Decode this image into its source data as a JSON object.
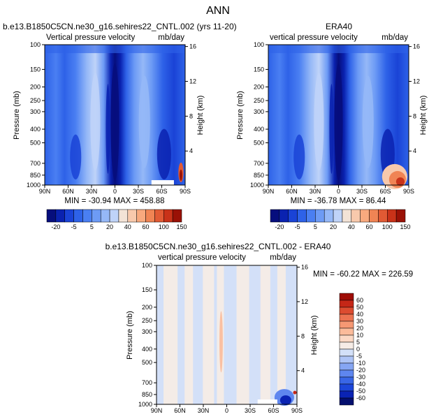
{
  "figure_title": "ANN",
  "colors": {
    "model_levels": [
      "#060e7d",
      "#0a22b0",
      "#1a43d6",
      "#2e62e8",
      "#4a7ff2",
      "#6d9bf5",
      "#95b8f7",
      "#bfd3f8",
      "#f3e3d6",
      "#f8c9ac",
      "#f8a97e",
      "#f08454",
      "#e15a34",
      "#c93219",
      "#9a1106"
    ],
    "diff_levels": [
      "#040f6e",
      "#0a23b4",
      "#1c46d9",
      "#3966e6",
      "#5e86ef",
      "#86a6f3",
      "#aec4f6",
      "#d3e0f8",
      "#f6ece6",
      "#fbd8c4",
      "#fbbb9a",
      "#f69873",
      "#ec7351",
      "#dc4c30",
      "#c52717",
      "#9e0c06"
    ]
  },
  "panels": [
    {
      "id": "model",
      "title": "b.e13.B1850C5CN.ne30_g16.sehires22_CNTL.002 (yrs 11-20)",
      "left_label": "Vertical pressure velocity",
      "right_label": "mb/day",
      "min_max": "MIN = -30.94   MAX = 458.88"
    },
    {
      "id": "obs",
      "title": "ERA40",
      "left_label": "vertical pressure velocity",
      "right_label": "mb/day",
      "min_max": "MIN = -36.78   MAX = 86.44"
    },
    {
      "id": "diff",
      "title": "b.e13.B1850C5CN.ne30_g16.sehires22_CNTL.002 - ERA40",
      "left_label": "vertical pressure velocity",
      "right_label": "mb/day",
      "min_max": "MIN = -60.22   MAX = 226.59"
    }
  ],
  "axes": {
    "ylabel_left": "Pressure (mb)",
    "ylabel_right": "Height (km)",
    "pressure_ticks": [
      "100",
      "150",
      "200",
      "250",
      "300",
      "400",
      "500",
      "700",
      "850",
      "1000"
    ],
    "height_ticks": [
      "16",
      "12",
      "8",
      "4"
    ],
    "lat_ticks": [
      "90N",
      "60N",
      "30N",
      "0",
      "30S",
      "60S",
      "90S"
    ]
  },
  "colorbars": {
    "model_labels": [
      "-20",
      "-5",
      "5",
      "20",
      "40",
      "60",
      "100",
      "150"
    ],
    "diff_labels": [
      "60",
      "50",
      "40",
      "30",
      "20",
      "10",
      "5",
      "0",
      "-5",
      "-10",
      "-20",
      "-30",
      "-40",
      "-50",
      "-60"
    ]
  },
  "chart_data": [
    {
      "type": "heatmap",
      "title": "b.e13.B1850C5CN.ne30_g16.sehires22_CNTL.002 (yrs 11-20)",
      "subtitle_left": "Vertical pressure velocity",
      "units": "mb/day",
      "xlabel": "",
      "ylabel": "Pressure (mb)",
      "ylabel_right": "Height (km)",
      "x": [
        "90N",
        "60N",
        "30N",
        "0",
        "30S",
        "60S",
        "90S"
      ],
      "y": [
        "100",
        "150",
        "200",
        "250",
        "300",
        "400",
        "500",
        "700",
        "850",
        "1000"
      ],
      "y_scale": "log",
      "min": -30.94,
      "max": 458.88
    },
    {
      "type": "heatmap",
      "title": "ERA40",
      "subtitle_left": "vertical pressure velocity",
      "units": "mb/day",
      "xlabel": "",
      "ylabel": "Pressure (mb)",
      "ylabel_right": "Height (km)",
      "x": [
        "90N",
        "60N",
        "30N",
        "0",
        "30S",
        "60S",
        "90S"
      ],
      "y": [
        "100",
        "150",
        "200",
        "250",
        "300",
        "400",
        "500",
        "700",
        "850",
        "1000"
      ],
      "y_scale": "log",
      "min": -36.78,
      "max": 86.44
    },
    {
      "type": "heatmap",
      "title": "b.e13.B1850C5CN.ne30_g16.sehires22_CNTL.002 - ERA40",
      "subtitle_left": "vertical pressure velocity",
      "units": "mb/day",
      "xlabel": "",
      "ylabel": "Pressure (mb)",
      "ylabel_right": "Height (km)",
      "x": [
        "90N",
        "60N",
        "30N",
        "0",
        "30S",
        "60S",
        "90S"
      ],
      "y": [
        "100",
        "150",
        "200",
        "250",
        "300",
        "400",
        "500",
        "700",
        "850",
        "1000"
      ],
      "y_scale": "log",
      "min": -60.22,
      "max": 226.59
    }
  ]
}
